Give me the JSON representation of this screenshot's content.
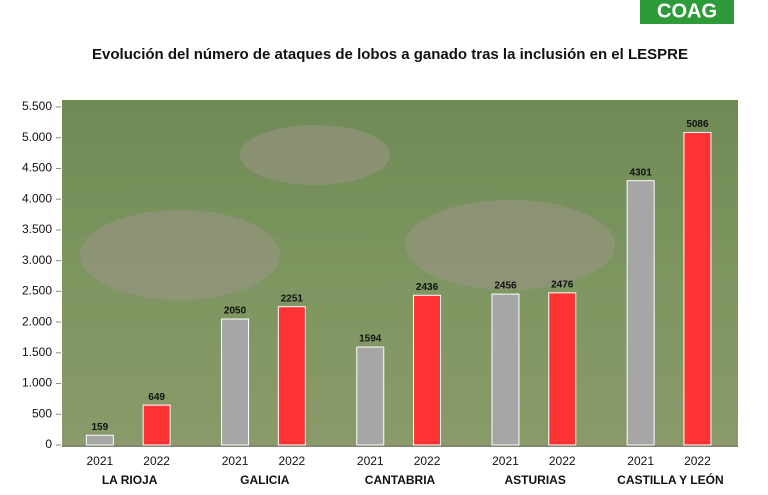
{
  "logo": "COAG",
  "chart_data": {
    "type": "bar",
    "title": "Evolución del número de ataques de lobos a ganado tras la inclusión en el LESPRE",
    "categories": [
      "LA RIOJA",
      "GALICIA",
      "CANTABRIA",
      "ASTURIAS",
      "CASTILLA Y LEÓN"
    ],
    "series": [
      {
        "name": "2021",
        "color": "#a6a6a6",
        "values": [
          159,
          2050,
          1594,
          2456,
          4301
        ]
      },
      {
        "name": "2022",
        "color": "#ff3333",
        "values": [
          649,
          2251,
          2436,
          2476,
          5086
        ]
      }
    ],
    "ylim": [
      0,
      5500
    ],
    "yticks": [
      0,
      500,
      {
        "value": 1000,
        "label": "1.000"
      },
      {
        "value": 1500,
        "label": "1.500"
      },
      {
        "value": 2000,
        "label": "2.000"
      },
      {
        "value": 2500,
        "label": "2.500"
      },
      {
        "value": 3000,
        "label": "3.000"
      },
      {
        "value": 3500,
        "label": "3.500"
      },
      {
        "value": 4000,
        "label": "4.000"
      },
      {
        "value": 4500,
        "label": "4.500"
      },
      {
        "value": 5000,
        "label": "5.000"
      },
      {
        "value": 5500,
        "label": "5.500"
      }
    ]
  }
}
